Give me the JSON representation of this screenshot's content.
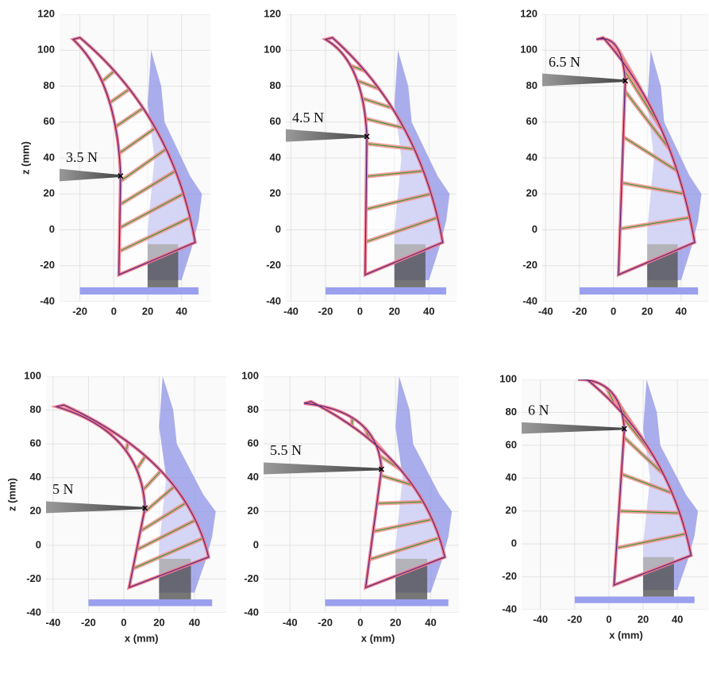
{
  "panels": [
    {
      "force": "3.5 N",
      "xlim": [
        -32,
        57
      ],
      "ylim": [
        -40,
        120
      ],
      "xticks": [
        -20,
        0,
        20,
        40
      ],
      "yticks": [
        -40,
        -20,
        0,
        20,
        40,
        60,
        80,
        100,
        120
      ],
      "ylabel": "z (mm)",
      "contact": {
        "x": 4,
        "z": 30
      },
      "tip": {
        "x": -24,
        "z": 106
      }
    },
    {
      "force": "4.5 N",
      "xlim": [
        -43,
        56
      ],
      "ylim": [
        -40,
        120
      ],
      "xticks": [
        -40,
        -20,
        0,
        20,
        40
      ],
      "yticks": [
        -40,
        -20,
        0,
        20,
        40,
        60,
        80,
        100,
        120
      ],
      "contact": {
        "x": 4,
        "z": 52
      },
      "tip": {
        "x": -20,
        "z": 106
      }
    },
    {
      "force": "6.5 N",
      "xlim": [
        -42,
        56
      ],
      "ylim": [
        -40,
        120
      ],
      "xticks": [
        -40,
        -20,
        0,
        20,
        40
      ],
      "yticks": [
        -40,
        -20,
        0,
        20,
        40,
        60,
        80,
        100,
        120
      ],
      "contact": {
        "x": 7,
        "z": 83
      },
      "tip": {
        "x": -10,
        "z": 106
      }
    },
    {
      "force": "5 N",
      "xlim": [
        -44,
        58
      ],
      "ylim": [
        -40,
        100
      ],
      "xticks": [
        -40,
        -20,
        0,
        20,
        40
      ],
      "yticks": [
        -40,
        -20,
        0,
        20,
        40,
        60,
        80,
        100
      ],
      "ylabel": "z (mm)",
      "xlabel": "x (mm)",
      "contact": {
        "x": 12,
        "z": 22
      },
      "tip": {
        "x": -38,
        "z": 82
      }
    },
    {
      "force": "5.5 N",
      "xlim": [
        -55,
        56
      ],
      "ylim": [
        -40,
        100
      ],
      "xticks": [
        -40,
        -20,
        0,
        20,
        40
      ],
      "yticks": [
        -40,
        -20,
        0,
        20,
        40,
        60,
        80,
        100
      ],
      "xlabel": "x (mm)",
      "contact": {
        "x": 12,
        "z": 45
      },
      "tip": {
        "x": -32,
        "z": 84
      }
    },
    {
      "force": "6 N",
      "xlim": [
        -51,
        58
      ],
      "ylim": [
        -40,
        100
      ],
      "xticks": [
        -40,
        -20,
        0,
        20,
        40
      ],
      "yticks": [
        -40,
        -20,
        0,
        20,
        40,
        60,
        80,
        100
      ],
      "xlabel": "x (mm)",
      "contact": {
        "x": 9,
        "z": 70
      },
      "tip": {
        "x": -18,
        "z": 100
      }
    }
  ]
}
